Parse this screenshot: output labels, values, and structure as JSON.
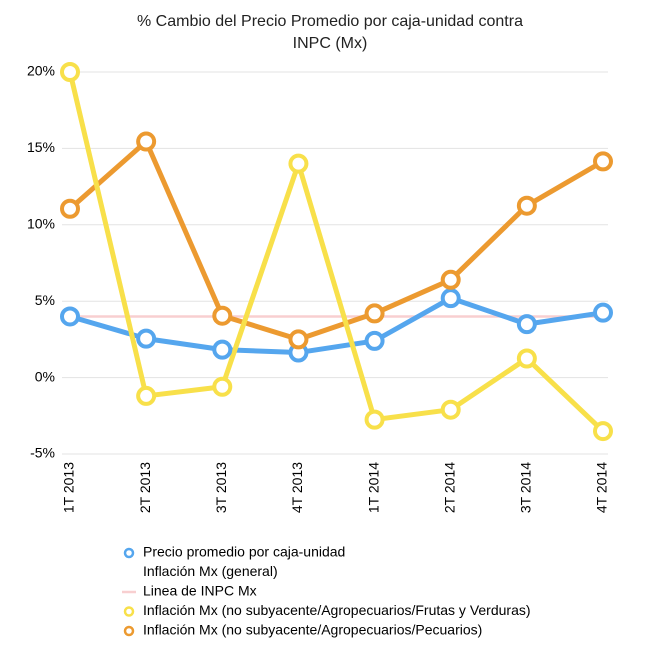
{
  "chart_data": {
    "type": "line",
    "title": [
      "% Cambio del Precio Promedio por caja-unidad contra",
      "INPC (Mx)"
    ],
    "categories": [
      "1T 2013",
      "2T 2013",
      "3T 2013",
      "4T 2013",
      "1T 2014",
      "2T 2014",
      "3T 2014",
      "4T 2014"
    ],
    "ylim": [
      -5,
      20
    ],
    "yticks": [
      {
        "value": -5,
        "label": "-5%"
      },
      {
        "value": 0,
        "label": "0%"
      },
      {
        "value": 5,
        "label": "5%"
      },
      {
        "value": 10,
        "label": "10%"
      },
      {
        "value": 15,
        "label": "15%"
      },
      {
        "value": 20,
        "label": "20%"
      }
    ],
    "grid": true,
    "series": [
      {
        "name": "Precio promedio por caja-unidad",
        "color": "#55a6ee",
        "markers": true,
        "values": [
          4.0,
          2.55,
          1.83,
          1.64,
          2.4,
          5.2,
          3.5,
          4.25
        ]
      },
      {
        "name": "Inflación Mx (general)",
        "color": "#ffffff",
        "markers": false,
        "values": [
          null,
          null,
          null,
          null,
          null,
          null,
          null,
          null
        ]
      },
      {
        "name": "Linea de INPC Mx",
        "color": "#f8cfd0",
        "markers": false,
        "values": [
          4.0,
          4.0,
          4.0,
          4.0,
          4.0,
          4.0,
          4.0,
          4.0
        ]
      },
      {
        "name": "Inflación Mx (no subyacente/Agropecuarios/Frutas y Verduras)",
        "color": "#f8e04a",
        "markers": true,
        "values": [
          20.0,
          -1.2,
          -0.6,
          14.0,
          -2.75,
          -2.1,
          1.25,
          -3.5
        ]
      },
      {
        "name": "Inflación Mx (no subyacente/Agropecuarios/Pecuarios)",
        "color": "#ec9a30",
        "markers": true,
        "values": [
          11.05,
          15.45,
          4.05,
          2.5,
          4.2,
          6.4,
          11.25,
          14.15
        ]
      }
    ]
  }
}
